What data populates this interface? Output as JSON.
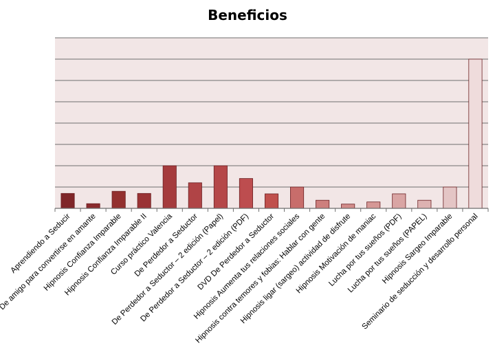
{
  "chart_data": {
    "type": "bar",
    "title": "Beneficios",
    "xlabel": "",
    "ylabel": "",
    "ylim": [
      0,
      8
    ],
    "grid": true,
    "legend": "none",
    "categories": [
      "Aprendiendo a Seducir",
      "De amigo para convertirse en amante",
      "Hipnosis Confianza Imparable",
      "Hipnosis Confianza Imparable II",
      "Curso práctico Valencia",
      "De Perdedor a Seductor",
      "De Perdedor a Seductor – 2 edición (Papel)",
      "De Perdedor a Seductor – 2 edición (PDF)",
      "DVD De Perdedor a Seductor",
      "Hipnosis Aumenta tus relaciones sociales",
      "Hipnosis contra temores y fobias: Hablar con gente",
      "Hipnosis ligar (sargeo) actividad de disfrute",
      "Hipnosis Motivación de maniac",
      "Lucha por tus sueños  (PDF)",
      "Lucha por tus sueños  (PAPEL)",
      "Hipnosis Sargeo Imparable",
      "Seminario de seducción y desarrollo personal"
    ],
    "values": [
      0.7,
      0.22,
      0.8,
      0.7,
      2.0,
      1.2,
      2.0,
      1.4,
      0.68,
      1.0,
      0.38,
      0.2,
      0.3,
      0.68,
      0.38,
      1.0,
      7.0
    ],
    "colors": [
      "#7f2629",
      "#8a2b2e",
      "#93302f",
      "#9a3335",
      "#a53b3d",
      "#b04446",
      "#b54749",
      "#bd4d4f",
      "#c0504d",
      "#c86d6b",
      "#cd7f7d",
      "#d18c8a",
      "#d59896",
      "#d9a5a4",
      "#ddb2b1",
      "#e4c5c5",
      "#efdcdc"
    ],
    "bar_border": "#6b1f22",
    "plot_background": "#f2e6e6",
    "gridline_color": "#6e6e6e"
  }
}
